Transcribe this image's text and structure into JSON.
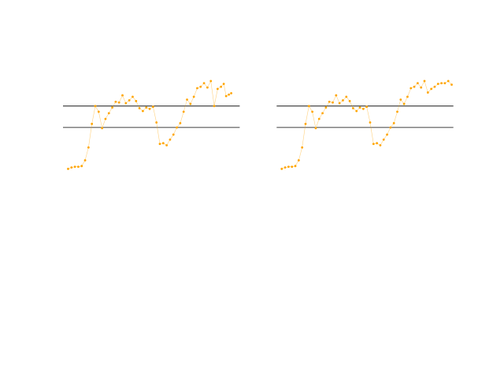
{
  "colors": {
    "series": "#ffa500",
    "reference_lines": "#000000",
    "background": "#ffffff"
  },
  "chart_data": [
    {
      "type": "line",
      "markers": "point",
      "grid": false,
      "axes_visible": false,
      "title": "",
      "xlabel": "",
      "ylabel": "",
      "xlim": [
        -1.5,
        50.5
      ],
      "ylim": [
        -0.15,
        1.65
      ],
      "hlines": [
        0.5,
        0.8
      ],
      "x": [
        0,
        1,
        2,
        3,
        4,
        5,
        6,
        7,
        8,
        9,
        10,
        11,
        12,
        13,
        14,
        15,
        16,
        17,
        18,
        19,
        20,
        21,
        22,
        23,
        24,
        25,
        26,
        27,
        28,
        29,
        30,
        31,
        32,
        33,
        34,
        35,
        36,
        37,
        38,
        39,
        40,
        41,
        42,
        43,
        44,
        45,
        45.8,
        46.5,
        47.3,
        48
      ],
      "values": [
        -0.08,
        -0.06,
        -0.05,
        -0.05,
        -0.04,
        0.04,
        0.22,
        0.55,
        0.8,
        0.72,
        0.49,
        0.62,
        0.7,
        0.78,
        0.86,
        0.85,
        0.95,
        0.84,
        0.88,
        0.93,
        0.87,
        0.77,
        0.73,
        0.78,
        0.76,
        0.79,
        0.57,
        0.27,
        0.28,
        0.25,
        0.33,
        0.4,
        0.5,
        0.56,
        0.72,
        0.89,
        0.83,
        0.93,
        1.05,
        1.07,
        1.12,
        1.06,
        1.15,
        0.8,
        1.04,
        1.07,
        1.11,
        0.94,
        0.96,
        0.98
      ]
    },
    {
      "type": "line",
      "markers": "point",
      "grid": false,
      "axes_visible": false,
      "title": "",
      "xlabel": "",
      "ylabel": "",
      "xlim": [
        -1.5,
        50.5
      ],
      "ylim": [
        -0.15,
        1.65
      ],
      "hlines": [
        0.5,
        0.8
      ],
      "x": [
        0,
        1,
        2,
        3,
        4,
        5,
        6,
        7,
        8,
        9,
        10,
        11,
        12,
        13,
        14,
        15,
        16,
        17,
        18,
        19,
        20,
        21,
        22,
        23,
        24,
        25,
        26,
        27,
        28,
        29,
        30,
        31,
        32,
        33,
        34,
        35,
        36,
        37,
        38,
        39,
        40,
        41,
        42,
        43,
        44,
        45,
        46,
        47,
        48,
        49,
        50
      ],
      "values": [
        -0.08,
        -0.06,
        -0.05,
        -0.05,
        -0.04,
        0.04,
        0.22,
        0.55,
        0.8,
        0.72,
        0.49,
        0.62,
        0.7,
        0.78,
        0.86,
        0.85,
        0.95,
        0.84,
        0.88,
        0.93,
        0.87,
        0.77,
        0.73,
        0.78,
        0.76,
        0.79,
        0.57,
        0.27,
        0.28,
        0.25,
        0.33,
        0.4,
        0.5,
        0.56,
        0.72,
        0.89,
        0.83,
        0.93,
        1.05,
        1.07,
        1.12,
        1.06,
        1.15,
        0.99,
        1.04,
        1.07,
        1.11,
        1.12,
        1.12,
        1.15,
        1.1
      ]
    }
  ]
}
